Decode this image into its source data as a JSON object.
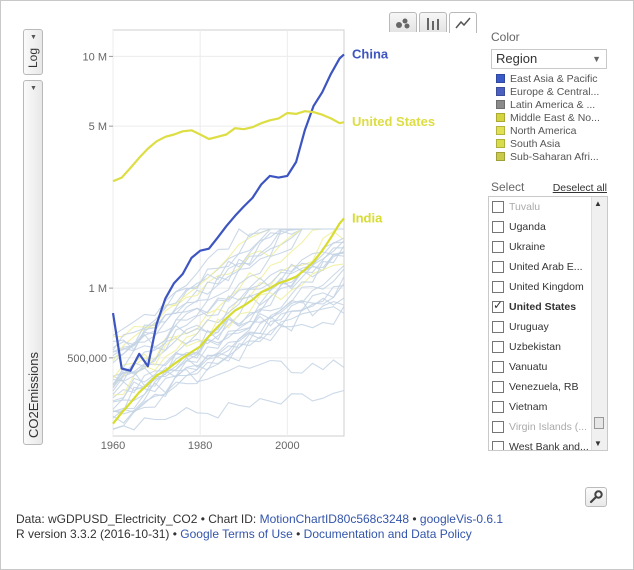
{
  "toolbar": {
    "tabs": [
      {
        "name": "bubble",
        "icon": "bubble-chart-icon"
      },
      {
        "name": "bar",
        "icon": "bar-chart-icon"
      },
      {
        "name": "line",
        "icon": "line-chart-icon",
        "active": true
      }
    ],
    "scale_label": "Log",
    "y_variable": "CO2Emissions",
    "settings_icon": "wrench-icon"
  },
  "color_panel": {
    "title": "Color",
    "selected": "Region",
    "legend": [
      {
        "label": "East Asia & Pacific",
        "color": "#3a5bc7"
      },
      {
        "label": "Europe & Central...",
        "color": "#4a5fc0"
      },
      {
        "label": "Latin America & ...",
        "color": "#8a8a8a"
      },
      {
        "label": "Middle East & No...",
        "color": "#d4d440"
      },
      {
        "label": "North America",
        "color": "#e0e052"
      },
      {
        "label": "South Asia",
        "color": "#d9dc4a"
      },
      {
        "label": "Sub-Saharan Afri...",
        "color": "#c9c94a"
      }
    ]
  },
  "select_panel": {
    "title": "Select",
    "deselect_label": "Deselect all",
    "items": [
      {
        "label": "Tuvalu",
        "checked": false,
        "dim": true
      },
      {
        "label": "Uganda",
        "checked": false
      },
      {
        "label": "Ukraine",
        "checked": false
      },
      {
        "label": "United Arab E...",
        "checked": false
      },
      {
        "label": "United Kingdom",
        "checked": false
      },
      {
        "label": "United States",
        "checked": true
      },
      {
        "label": "Uruguay",
        "checked": false
      },
      {
        "label": "Uzbekistan",
        "checked": false
      },
      {
        "label": "Vanuatu",
        "checked": false
      },
      {
        "label": "Venezuela, RB",
        "checked": false
      },
      {
        "label": "Vietnam",
        "checked": false
      },
      {
        "label": "Virgin Islands (...",
        "checked": false,
        "dim": true
      },
      {
        "label": "West Bank and...",
        "checked": false
      }
    ]
  },
  "footer": {
    "line1_prefix": "Data: wGDPUSD_Electricity_CO2 • Chart ID: ",
    "chart_id": "MotionChartID80c568c3248",
    "line1_sep": " • ",
    "version_link": "googleVis-0.6.1",
    "line2_prefix": "R version 3.3.2 (2016-10-31) • ",
    "terms_link": "Google Terms of Use",
    "line2_sep": " • ",
    "docs_link": "Documentation and Data Policy"
  },
  "chart_data": {
    "type": "line",
    "yscale": "log",
    "x": [
      1960,
      1962,
      1964,
      1966,
      1968,
      1970,
      1972,
      1974,
      1976,
      1978,
      1980,
      1982,
      1984,
      1986,
      1988,
      1990,
      1992,
      1994,
      1996,
      1998,
      2000,
      2002,
      2004,
      2006,
      2008,
      2010,
      2012,
      2013
    ],
    "xlim": [
      1960,
      2013
    ],
    "ylim": [
      230000,
      13000000
    ],
    "x_ticks": [
      "1960",
      "1980",
      "2000"
    ],
    "x_tick_values": [
      1960,
      1980,
      2000
    ],
    "y_ticks": [
      "500,000",
      "1 M",
      "5 M",
      "10 M"
    ],
    "y_tick_values": [
      500000,
      1000000,
      5000000,
      10000000
    ],
    "series": [
      {
        "name": "China",
        "color": "#3d55c0",
        "values": [
          780000,
          450000,
          440000,
          520000,
          460000,
          700000,
          900000,
          1050000,
          1150000,
          1350000,
          1450000,
          1480000,
          1650000,
          1850000,
          2050000,
          2250000,
          2450000,
          2800000,
          3050000,
          3000000,
          3050000,
          3500000,
          4800000,
          6100000,
          7000000,
          8400000,
          9800000,
          10200000
        ]
      },
      {
        "name": "United States",
        "color": "#dddd44",
        "values": [
          2890000,
          3000000,
          3300000,
          3650000,
          4000000,
          4300000,
          4500000,
          4600000,
          4750000,
          4800000,
          4600000,
          4400000,
          4500000,
          4600000,
          4900000,
          4850000,
          4950000,
          5150000,
          5300000,
          5400000,
          5700000,
          5650000,
          5800000,
          5750000,
          5600000,
          5400000,
          5150000,
          5200000
        ]
      },
      {
        "name": "India",
        "color": "#d7dc2e",
        "values": [
          260000,
          290000,
          320000,
          355000,
          385000,
          420000,
          440000,
          470000,
          500000,
          530000,
          560000,
          620000,
          680000,
          740000,
          800000,
          840000,
          890000,
          960000,
          1000000,
          1050000,
          1080000,
          1120000,
          1200000,
          1300000,
          1450000,
          1650000,
          1900000,
          2000000
        ]
      }
    ]
  }
}
